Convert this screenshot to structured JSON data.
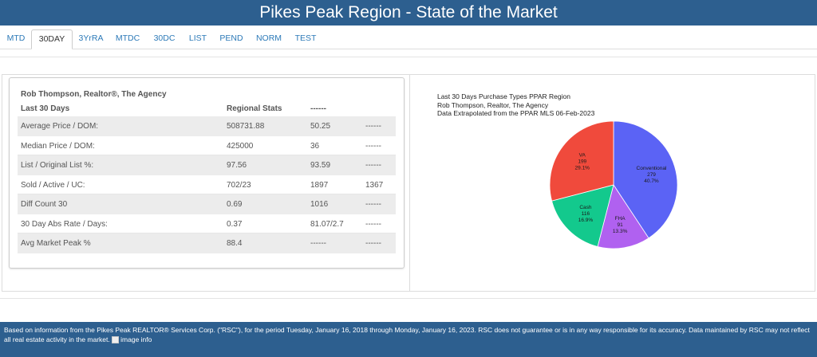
{
  "header": {
    "title": "Pikes Peak Region - State of the Market"
  },
  "tabs": [
    {
      "label": "MTD"
    },
    {
      "label": "30DAY",
      "active": true
    },
    {
      "label": "3YrRA"
    },
    {
      "label": "MTDC"
    },
    {
      "label": "30DC"
    },
    {
      "label": "LIST"
    },
    {
      "label": "PEND"
    },
    {
      "label": "NORM"
    },
    {
      "label": "TEST"
    }
  ],
  "stats": {
    "agent": "Rob Thompson, Realtor®, The Agency",
    "period": "Last 30 Days",
    "col_regional": "Regional Stats",
    "col_other": "------",
    "rows": [
      {
        "label": "Average Price / DOM:",
        "v1": "508731.88",
        "v2": "50.25",
        "v3": "------"
      },
      {
        "label": "Median Price / DOM:",
        "v1": "425000",
        "v2": "36",
        "v3": "------"
      },
      {
        "label": "List / Original List %:",
        "v1": "97.56",
        "v2": "93.59",
        "v3": "------"
      },
      {
        "label": "Sold / Active / UC:",
        "v1": "702/23",
        "v2": "1897",
        "v3": "1367"
      },
      {
        "label": "Diff Count 30",
        "v1": "0.69",
        "v2": "1016",
        "v3": "------"
      },
      {
        "label": "30 Day Abs Rate / Days:",
        "v1": "0.37",
        "v2": "81.07/2.7",
        "v3": "------"
      },
      {
        "label": "Avg Market Peak %",
        "v1": "88.4",
        "v2": "------",
        "v3": "------"
      }
    ]
  },
  "chart_data": {
    "type": "pie",
    "title_lines": [
      "Last 30 Days Purchase Types PPAR Region",
      "Rob Thompson, Realtor, The Agency",
      "Data Extrapolated from the PPAR MLS 06-Feb-2023"
    ],
    "slices": [
      {
        "name": "Conventional",
        "value": 279,
        "pct": "40.7%",
        "color": "#5b63f5"
      },
      {
        "name": "FHA",
        "value": 91,
        "pct": "13.3%",
        "color": "#b061f0"
      },
      {
        "name": "Cash",
        "value": 116,
        "pct": "16.9%",
        "color": "#13c98d"
      },
      {
        "name": "VA",
        "value": 199,
        "pct": "29.1%",
        "color": "#f04a3c"
      }
    ]
  },
  "footer": {
    "text": "Based on information from the Pikes Peak REALTOR® Services Corp. (\"RSC\"), for the period Tuesday, January 16, 2018 through Monday, January 16, 2023. RSC does not guarantee or is in any way responsible for its accuracy. Data maintained by RSC may not reflect all real estate activity in the market.",
    "image_alt": "image info"
  }
}
